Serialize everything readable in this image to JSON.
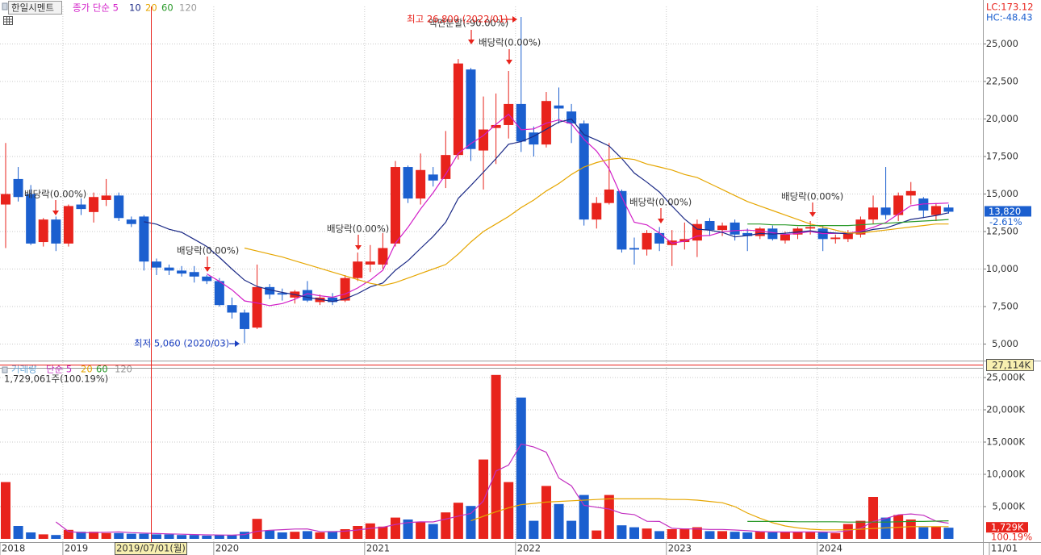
{
  "header": {
    "lc": "LC:173.12",
    "hc": "HC:-48.43"
  },
  "crosshair": {
    "date": "2019/07/01(월)",
    "volume": "27,114K"
  },
  "chart_data": [
    {
      "type": "candlestick",
      "name": "한일시멘트",
      "categories": [
        "2018",
        null,
        null,
        null,
        null,
        "2019",
        null,
        null,
        null,
        null,
        null,
        null,
        null,
        null,
        null,
        null,
        null,
        "2020",
        null,
        null,
        null,
        null,
        null,
        null,
        null,
        null,
        null,
        null,
        null,
        "2021",
        null,
        null,
        null,
        null,
        null,
        null,
        null,
        null,
        null,
        null,
        null,
        "2022",
        null,
        null,
        null,
        null,
        null,
        null,
        null,
        null,
        null,
        null,
        null,
        "2023",
        null,
        null,
        null,
        null,
        null,
        null,
        null,
        null,
        null,
        null,
        null,
        "2024",
        null,
        null,
        null,
        null,
        null,
        null,
        null,
        null,
        null,
        "11/01"
      ],
      "open": [
        14300,
        16000,
        15000,
        11800,
        13300,
        11700,
        14300,
        13800,
        14600,
        14900,
        13300,
        13500,
        10500,
        10100,
        9900,
        9800,
        9500,
        9200,
        7600,
        7100,
        6100,
        8800,
        8400,
        8100,
        8600,
        7800,
        8100,
        7900,
        9400,
        10300,
        10300,
        11700,
        16800,
        14700,
        16300,
        16000,
        17600,
        23300,
        17900,
        19400,
        19600,
        21000,
        19100,
        18300,
        20900,
        20500,
        19700,
        13300,
        14400,
        15200,
        11400,
        11300,
        12400,
        11600,
        11800,
        11900,
        13200,
        12600,
        13100,
        12400,
        12200,
        12700,
        11900,
        12300,
        12700,
        12700,
        12000,
        12000,
        12300,
        13300,
        14100,
        13600,
        14900,
        14700,
        13600,
        14100
      ],
      "high": [
        18400,
        16800,
        15600,
        13400,
        13500,
        14300,
        14700,
        15100,
        16000,
        15100,
        13500,
        13600,
        10700,
        10300,
        10200,
        10200,
        9600,
        9400,
        8100,
        7300,
        10300,
        9000,
        8700,
        8600,
        9200,
        8300,
        8400,
        9600,
        11100,
        11600,
        12400,
        17200,
        16900,
        17700,
        16800,
        19200,
        24000,
        23400,
        21500,
        21700,
        23200,
        26800,
        19500,
        21800,
        22100,
        21000,
        19900,
        14800,
        18400,
        15300,
        12100,
        12600,
        12800,
        12600,
        13100,
        13300,
        13400,
        13100,
        13300,
        12700,
        12800,
        12900,
        12500,
        12800,
        13200,
        12900,
        12300,
        12600,
        13500,
        14900,
        16800,
        15100,
        15800,
        14800,
        14400,
        14300
      ],
      "low": [
        11400,
        14500,
        11600,
        11500,
        11200,
        11500,
        13600,
        13100,
        14200,
        13200,
        12800,
        9900,
        9600,
        9600,
        9500,
        9100,
        9000,
        7500,
        6700,
        5060,
        6000,
        8000,
        7900,
        7700,
        7800,
        7600,
        7600,
        7800,
        9200,
        9800,
        10000,
        11500,
        14400,
        14300,
        15500,
        15400,
        17300,
        17200,
        15300,
        17000,
        18700,
        17800,
        17500,
        18100,
        19700,
        18400,
        12900,
        12700,
        14300,
        11100,
        10300,
        10900,
        11200,
        10200,
        11300,
        10800,
        12200,
        12200,
        11900,
        11200,
        12000,
        11900,
        11700,
        12000,
        12300,
        11200,
        11700,
        11800,
        12100,
        13000,
        13300,
        13200,
        14300,
        13400,
        13200,
        13700
      ],
      "close": [
        15000,
        14800,
        11700,
        13300,
        11700,
        14200,
        14000,
        14800,
        14900,
        13400,
        13000,
        10500,
        10100,
        9900,
        9700,
        9500,
        9200,
        7600,
        7100,
        6000,
        8800,
        8300,
        8300,
        8500,
        7900,
        8100,
        7800,
        9400,
        10500,
        10500,
        11400,
        16800,
        14700,
        16600,
        15900,
        17600,
        23700,
        18000,
        19300,
        19600,
        21000,
        18500,
        18300,
        21200,
        20700,
        19700,
        13300,
        14400,
        15300,
        11300,
        11300,
        12400,
        11700,
        11900,
        12000,
        13000,
        12600,
        12900,
        12300,
        12200,
        12700,
        12000,
        12300,
        12700,
        12800,
        12000,
        12100,
        12400,
        13300,
        14100,
        13600,
        14900,
        15200,
        13900,
        14200,
        13820
      ],
      "up_color": "#e8231c",
      "down_color": "#1b5fcf",
      "series": [
        {
          "name": "종가 단순 5",
          "color": "#d21fc8",
          "values": [
            null,
            null,
            null,
            null,
            null,
            null,
            null,
            null,
            null,
            null,
            null,
            null,
            null,
            null,
            null,
            null,
            9680,
            9180,
            8620,
            7880,
            7740,
            7560,
            7700,
            7980,
            8360,
            8220,
            8120,
            8340,
            8740,
            9260,
            9920,
            11720,
            12780,
            14000,
            15080,
            16320,
            17700,
            18360,
            18900,
            19640,
            20320,
            19280,
            19340,
            19720,
            19940,
            19680,
            18640,
            17860,
            16680,
            14800,
            13120,
            12940,
            12400,
            11720,
            11860,
            12200,
            12240,
            12480,
            12560,
            12600,
            12540,
            12420,
            12300,
            12380,
            12500,
            12360,
            12380,
            12400,
            12520,
            12780,
            13100,
            13660,
            14220,
            14340,
            14360,
            14400
          ]
        },
        {
          "name": "10",
          "color": "#1c2a86",
          "values": [
            null,
            null,
            null,
            null,
            null,
            null,
            null,
            null,
            null,
            null,
            null,
            13150,
            12990,
            12650,
            12450,
            11980,
            11500,
            10780,
            10000,
            9260,
            8840,
            8620,
            8440,
            8300,
            8120,
            7980,
            7840,
            8020,
            8360,
            8810,
            9070,
            9920,
            10560,
            11370,
            12170,
            13120,
            14710,
            15570,
            16450,
            17360,
            18320,
            18490,
            18850,
            19310,
            19790,
            20000,
            18960,
            18600,
            18200,
            17370,
            16400,
            15790,
            15130,
            14200,
            13330,
            12660,
            12590,
            12440,
            12140,
            12230,
            12370,
            12330,
            12390,
            12470,
            12550,
            12450,
            12400,
            12350,
            12450,
            12640,
            12730,
            13020,
            13310,
            13430,
            13570,
            13750
          ]
        },
        {
          "name": "20",
          "color": "#e6a600",
          "values": [
            null,
            null,
            null,
            null,
            null,
            null,
            null,
            null,
            null,
            null,
            null,
            null,
            null,
            null,
            null,
            null,
            null,
            null,
            null,
            11400,
            11200,
            11000,
            10800,
            10550,
            10300,
            10050,
            9800,
            9550,
            9300,
            9050,
            8900,
            9100,
            9400,
            9700,
            10000,
            10300,
            11000,
            11800,
            12500,
            13000,
            13500,
            14100,
            14600,
            15200,
            15700,
            16300,
            16800,
            17100,
            17300,
            17400,
            17300,
            17000,
            16800,
            16600,
            16300,
            16100,
            15700,
            15300,
            14900,
            14500,
            14200,
            13900,
            13600,
            13300,
            13000,
            12800,
            12600,
            12400,
            12400,
            12500,
            12600,
            12700,
            12800,
            12900,
            13000,
            13000
          ]
        },
        {
          "name": "60",
          "color": "#2a9a2a",
          "values": [
            null,
            null,
            null,
            null,
            null,
            null,
            null,
            null,
            null,
            null,
            null,
            null,
            null,
            null,
            null,
            null,
            null,
            null,
            null,
            null,
            null,
            null,
            null,
            null,
            null,
            null,
            null,
            null,
            null,
            null,
            null,
            null,
            null,
            null,
            null,
            null,
            null,
            null,
            null,
            null,
            null,
            null,
            null,
            null,
            null,
            null,
            null,
            null,
            null,
            null,
            null,
            null,
            null,
            null,
            null,
            null,
            null,
            null,
            null,
            13000,
            13000,
            12950,
            12950,
            12900,
            12900,
            12900,
            12900,
            12900,
            12950,
            13000,
            13050,
            13100,
            13150,
            13200,
            13250,
            13300
          ]
        }
      ],
      "inactive_legend": "120",
      "ylim": [
        3900,
        27500
      ],
      "yticks": [
        {
          "value": 5000,
          "label": "5,000"
        },
        {
          "value": 7500,
          "label": "7,500"
        },
        {
          "value": 10000,
          "label": "10,000"
        },
        {
          "value": 12500,
          "label": "12,500"
        },
        {
          "value": 15000,
          "label": "15,000"
        },
        {
          "value": 17500,
          "label": "17,500"
        },
        {
          "value": 20000,
          "label": "20,000"
        },
        {
          "value": 22500,
          "label": "22,500"
        },
        {
          "value": 25000,
          "label": "25,000"
        }
      ],
      "grid": true,
      "last_label": "13,820",
      "last_change": "-2.61%",
      "annotations": [
        "배당락(0.00%)",
        "배당락(0.00%)",
        "배당락(0.00%)",
        "액면분할(-90.00%)",
        "배당락(0.00%)",
        "배당락(0.00%)",
        "배당락(0.00%)",
        "최고 26,800 (2022/01)",
        "최저 5,060 (2020/03)"
      ]
    },
    {
      "type": "bar",
      "title": "거래량",
      "values": [
        8800,
        2000,
        1000,
        700,
        600,
        1400,
        1100,
        1100,
        900,
        900,
        800,
        800,
        700,
        700,
        600,
        600,
        500,
        600,
        600,
        1100,
        3100,
        1300,
        1000,
        1100,
        1200,
        1000,
        1200,
        1500,
        2000,
        2400,
        1900,
        3300,
        3000,
        2600,
        2300,
        4100,
        5600,
        5100,
        12300,
        25400,
        8800,
        21900,
        2800,
        8200,
        5400,
        2800,
        6800,
        1300,
        6800,
        2100,
        1800,
        1600,
        1200,
        1500,
        1600,
        1800,
        1200,
        1200,
        1100,
        1000,
        1100,
        1000,
        1100,
        1100,
        1100,
        1000,
        900,
        2300,
        2800,
        6500,
        3300,
        3700,
        3000,
        1800,
        1900,
        1729
      ],
      "series": [
        {
          "name": "단순 5",
          "color": "#c22fc0",
          "values": [
            null,
            null,
            null,
            null,
            2620,
            1140,
            960,
            980,
            1020,
            1080,
            960,
            900,
            820,
            780,
            720,
            680,
            620,
            600,
            580,
            680,
            1180,
            1340,
            1420,
            1520,
            1540,
            1120,
            1100,
            1200,
            1380,
            1620,
            1800,
            2220,
            2520,
            2640,
            2620,
            3060,
            3520,
            3940,
            5880,
            10500,
            11440,
            14700,
            14240,
            13420,
            9420,
            8220,
            5200,
            4900,
            4620,
            3960,
            3760,
            2720,
            2700,
            1640,
            1540,
            1540,
            1460,
            1460,
            1380,
            1260,
            1120,
            1080,
            1060,
            1060,
            1080,
            1060,
            1040,
            1280,
            1620,
            2700,
            3160,
            3720,
            3860,
            3660,
            2740,
            2426
          ]
        },
        {
          "name": "20",
          "color": "#e6a600",
          "values": [
            null,
            null,
            null,
            null,
            null,
            null,
            null,
            null,
            null,
            null,
            null,
            null,
            null,
            null,
            null,
            null,
            null,
            null,
            null,
            null,
            null,
            null,
            null,
            null,
            null,
            null,
            null,
            null,
            null,
            null,
            null,
            null,
            null,
            null,
            null,
            null,
            null,
            2800,
            3500,
            4200,
            4800,
            5300,
            5500,
            5700,
            5800,
            5900,
            6000,
            6100,
            6200,
            6200,
            6200,
            6200,
            6200,
            6100,
            6100,
            6000,
            5800,
            5600,
            5000,
            4000,
            3200,
            2500,
            2000,
            1700,
            1500,
            1400,
            1400,
            1400,
            1500,
            1600,
            1700,
            1800,
            1900,
            1900,
            1900,
            1900
          ]
        },
        {
          "name": "60",
          "color": "#2a9a2a",
          "values": [
            null,
            null,
            null,
            null,
            null,
            null,
            null,
            null,
            null,
            null,
            null,
            null,
            null,
            null,
            null,
            null,
            null,
            null,
            null,
            null,
            null,
            null,
            null,
            null,
            null,
            null,
            null,
            null,
            null,
            null,
            null,
            null,
            null,
            null,
            null,
            null,
            null,
            null,
            null,
            null,
            null,
            null,
            null,
            null,
            null,
            null,
            null,
            null,
            null,
            null,
            null,
            null,
            null,
            null,
            null,
            null,
            null,
            null,
            null,
            2700,
            2700,
            2700,
            2700,
            2650,
            2650,
            2650,
            2650,
            2600,
            2600,
            2600,
            2600,
            2650,
            2700,
            2700,
            2750,
            2800
          ]
        }
      ],
      "inactive_legend": "120",
      "summary": "1,729,061주(100.19%)",
      "ylim": [
        -500,
        26250
      ],
      "yticks": [
        {
          "value": 5000,
          "label": "5,000K"
        },
        {
          "value": 10000,
          "label": "10,000K"
        },
        {
          "value": 15000,
          "label": "15,000K"
        },
        {
          "value": 20000,
          "label": "20,000K"
        },
        {
          "value": 25000,
          "label": "25,000K"
        }
      ],
      "grid": true,
      "last_label": "1,729K",
      "last_ratio": "100.19%"
    }
  ]
}
